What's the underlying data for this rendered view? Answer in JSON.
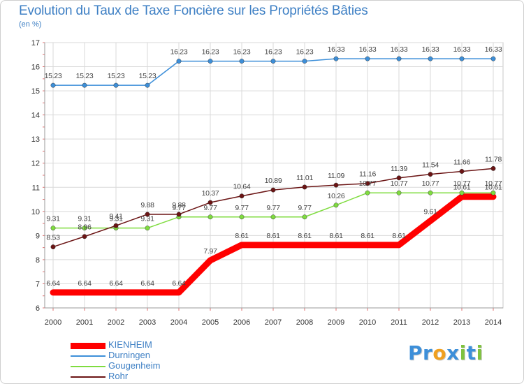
{
  "chart_data": {
    "type": "line",
    "title": "Evolution du Taux de Taxe Foncière sur les Propriétés Bâties",
    "subtitle": "(en %)",
    "categories": [
      "2000",
      "2001",
      "2002",
      "2003",
      "2004",
      "2005",
      "2006",
      "2007",
      "2008",
      "2009",
      "2010",
      "2011",
      "2012",
      "2013",
      "2014"
    ],
    "ylim": [
      6,
      17
    ],
    "yticks": [
      6,
      7,
      8,
      9,
      10,
      11,
      12,
      13,
      14,
      15,
      16,
      17
    ],
    "grid": true,
    "legend_position": "bottom-left",
    "series": [
      {
        "name": "KIENHEIM",
        "color": "#ff0000",
        "values": [
          6.64,
          6.64,
          6.64,
          6.64,
          6.64,
          7.97,
          8.61,
          8.61,
          8.61,
          8.61,
          8.61,
          8.61,
          9.61,
          10.61,
          10.61
        ],
        "labels": [
          "6.64",
          "6.64",
          "6.64",
          "6.64",
          "6.64",
          "7.97",
          "8.61",
          "8.61",
          "8.61",
          "8.61",
          "8.61",
          "8.61",
          "9.61",
          "10.61",
          "10.61"
        ]
      },
      {
        "name": "Durningen",
        "color": "#3d8fd9",
        "values": [
          15.23,
          15.23,
          15.23,
          15.23,
          16.23,
          16.23,
          16.23,
          16.23,
          16.23,
          16.33,
          16.33,
          16.33,
          16.33,
          16.33,
          16.33
        ],
        "labels": [
          "15.23",
          "15.23",
          "15.23",
          "15.23",
          "16.23",
          "16.23",
          "16.23",
          "16.23",
          "16.23",
          "16.33",
          "16.33",
          "16.33",
          "16.33",
          "16.33",
          "16.33"
        ]
      },
      {
        "name": "Gougenheim",
        "color": "#7fdc3f",
        "values": [
          9.31,
          9.31,
          9.31,
          9.31,
          9.77,
          9.77,
          9.77,
          9.77,
          9.77,
          10.26,
          10.77,
          10.77,
          10.77,
          10.77,
          10.77
        ],
        "labels": [
          "9.31",
          "9.31",
          "9.31",
          "9.31",
          "9.77",
          "9.77",
          "9.77",
          "9.77",
          "9.77",
          "10.26",
          "10.77",
          "10.77",
          "10.77",
          "10.77",
          "10.77"
        ]
      },
      {
        "name": "Rohr",
        "color": "#6b1414",
        "values": [
          8.53,
          8.96,
          9.41,
          9.88,
          9.88,
          10.37,
          10.64,
          10.89,
          11.01,
          11.09,
          11.16,
          11.39,
          11.54,
          11.66,
          11.78
        ],
        "labels": [
          "8.53",
          "8.96",
          "9.41",
          "9.88",
          "9.88",
          "10.37",
          "10.64",
          "10.89",
          "11.01",
          "11.09",
          "11.16",
          "11.39",
          "11.54",
          "11.66",
          "11.78"
        ]
      }
    ]
  },
  "logo": {
    "letters": [
      "P",
      "r",
      "o",
      "x",
      "i",
      "t",
      "i"
    ],
    "colors": [
      "#3d8fd9",
      "#3d8fd9",
      "#f0a020",
      "#3d8fd9",
      "#7fc23f",
      "#3d8fd9",
      "#7fc23f"
    ]
  }
}
